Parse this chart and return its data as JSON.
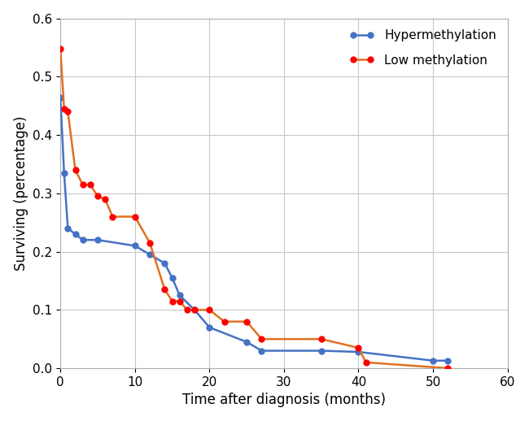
{
  "hypermethylation_x": [
    0,
    0.5,
    1,
    2,
    3,
    5,
    10,
    12,
    14,
    15,
    16,
    18,
    20,
    25,
    27,
    35,
    40,
    50,
    52
  ],
  "hypermethylation_y": [
    0.465,
    0.335,
    0.24,
    0.23,
    0.22,
    0.22,
    0.21,
    0.195,
    0.18,
    0.155,
    0.125,
    0.1,
    0.07,
    0.045,
    0.03,
    0.03,
    0.028,
    0.013,
    0.013
  ],
  "low_methylation_x": [
    0,
    0.5,
    1,
    2,
    3,
    4,
    5,
    6,
    7,
    10,
    12,
    14,
    15,
    16,
    17,
    18,
    20,
    22,
    25,
    27,
    35,
    40,
    41,
    52
  ],
  "low_methylation_y": [
    0.548,
    0.445,
    0.44,
    0.34,
    0.315,
    0.315,
    0.295,
    0.29,
    0.26,
    0.26,
    0.215,
    0.135,
    0.115,
    0.115,
    0.1,
    0.1,
    0.1,
    0.08,
    0.08,
    0.05,
    0.05,
    0.035,
    0.01,
    0.0
  ],
  "xlabel": "Time after diagnosis (months)",
  "ylabel": "Surviving (percentage)",
  "xlim": [
    0,
    60
  ],
  "ylim": [
    0,
    0.6
  ],
  "xticks": [
    0,
    10,
    20,
    30,
    40,
    50,
    60
  ],
  "yticks": [
    0,
    0.1,
    0.2,
    0.3,
    0.4,
    0.5,
    0.6
  ],
  "hyper_line_color": "#4472C4",
  "hyper_marker_color": "#4472C4",
  "low_line_color": "#E07020",
  "low_marker_color": "#FF0000",
  "marker_size": 6,
  "line_width": 1.8,
  "legend_hyper": "Hypermethylation",
  "legend_low": "Low methylation",
  "background_color": "#ffffff",
  "grid_color": "#c8c8c8",
  "spine_color": "#b0b0b0",
  "xlabel_fontsize": 12,
  "ylabel_fontsize": 12,
  "legend_fontsize": 11,
  "tick_fontsize": 11
}
